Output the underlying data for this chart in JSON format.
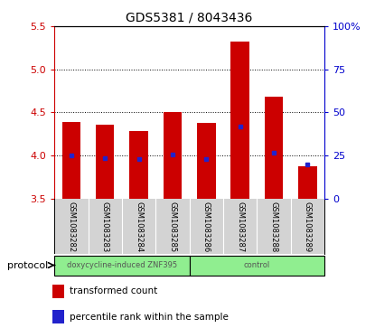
{
  "title": "GDS5381 / 8043436",
  "samples": [
    "GSM1083282",
    "GSM1083283",
    "GSM1083284",
    "GSM1083285",
    "GSM1083286",
    "GSM1083287",
    "GSM1083288",
    "GSM1083289"
  ],
  "transformed_counts": [
    4.39,
    4.36,
    4.28,
    4.5,
    4.38,
    5.32,
    4.68,
    3.87
  ],
  "bar_bottom": 3.5,
  "percentile_ranks": [
    25.0,
    23.5,
    23.0,
    25.5,
    23.0,
    42.0,
    26.5,
    20.0
  ],
  "ylim_min": 3.5,
  "ylim_max": 5.5,
  "yticks": [
    3.5,
    4.0,
    4.5,
    5.0,
    5.5
  ],
  "right_yticks": [
    0,
    25,
    50,
    75,
    100
  ],
  "right_yticklabels": [
    "0",
    "25",
    "50",
    "75",
    "100%"
  ],
  "bar_color": "#cc0000",
  "percentile_color": "#2222cc",
  "protocol_groups": [
    {
      "label": "doxycycline-induced ZNF395",
      "start": 0,
      "end": 4
    },
    {
      "label": "control",
      "start": 4,
      "end": 8
    }
  ],
  "protocol_label": "protocol",
  "legend_items": [
    {
      "color": "#cc0000",
      "label": "transformed count"
    },
    {
      "color": "#2222cc",
      "label": "percentile rank within the sample"
    }
  ],
  "bg_color": "#ffffff",
  "tick_bg_color": "#d3d3d3",
  "green_color": "#90ee90"
}
